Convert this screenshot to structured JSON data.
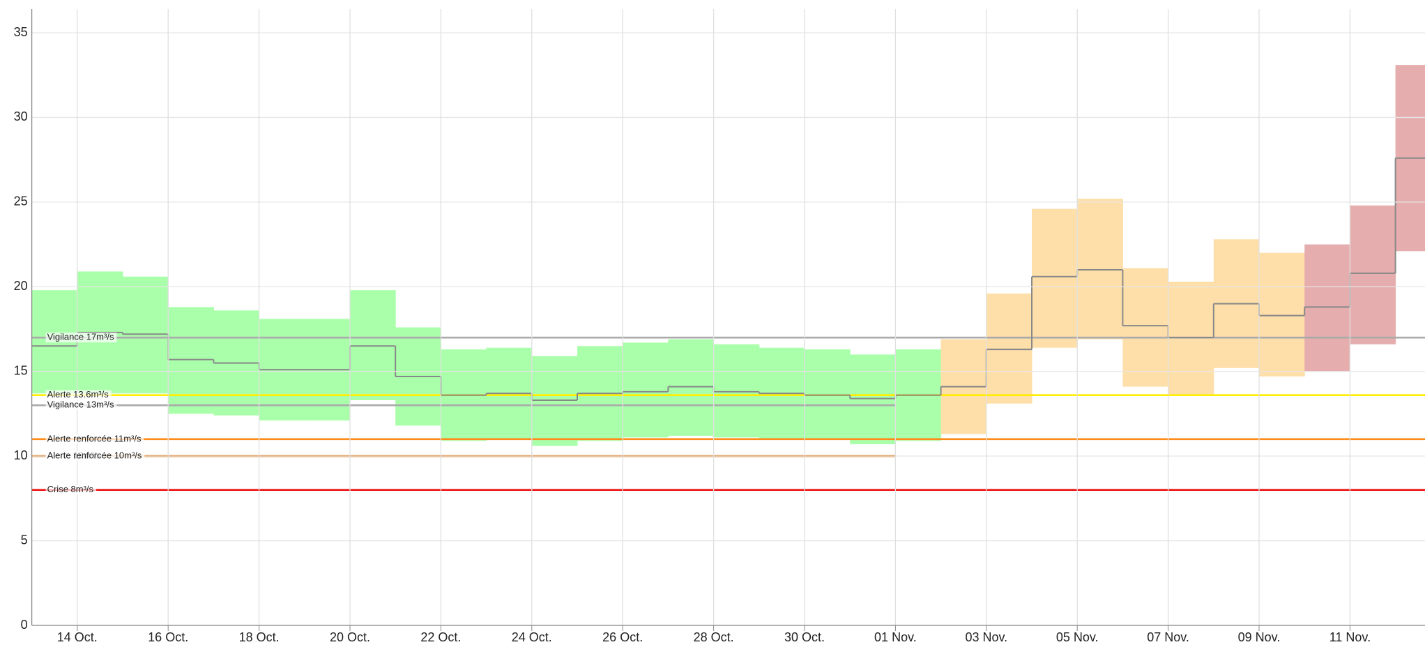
{
  "chart_data": {
    "type": "step-band",
    "categories": [
      null,
      "14 Oct.",
      null,
      "16 Oct.",
      null,
      "18 Oct.",
      null,
      "20 Oct.",
      null,
      "22 Oct.",
      null,
      "24 Oct.",
      null,
      "26 Oct.",
      null,
      "28 Oct.",
      null,
      "30 Oct.",
      null,
      "01 Nov.",
      null,
      "03 Nov.",
      null,
      "05 Nov.",
      null,
      "07 Nov.",
      null,
      "09 Nov.",
      null,
      "11 Nov.",
      null
    ],
    "values": [
      16.5,
      17.3,
      17.2,
      15.7,
      15.5,
      15.1,
      15.1,
      16.5,
      14.7,
      13.6,
      13.7,
      13.3,
      13.7,
      13.8,
      14.1,
      13.8,
      13.7,
      13.6,
      13.4,
      13.6,
      14.1,
      16.3,
      20.6,
      21.0,
      17.7,
      17.0,
      19.0,
      18.3,
      18.8,
      20.8,
      27.6
    ],
    "upper": [
      19.8,
      20.9,
      20.6,
      18.8,
      18.6,
      18.1,
      18.1,
      19.8,
      17.6,
      16.3,
      16.4,
      15.9,
      16.5,
      16.7,
      16.9,
      16.6,
      16.4,
      16.3,
      16.0,
      16.3,
      16.9,
      19.6,
      24.6,
      25.2,
      21.1,
      20.3,
      22.8,
      22.0,
      22.5,
      24.8,
      33.1
    ],
    "lower": [
      13.7,
      13.7,
      13.7,
      12.5,
      12.4,
      12.1,
      12.1,
      13.3,
      11.8,
      10.9,
      11.0,
      10.6,
      10.9,
      11.1,
      11.2,
      11.1,
      11.0,
      11.0,
      10.7,
      10.9,
      11.3,
      13.1,
      16.4,
      16.9,
      14.1,
      13.6,
      15.2,
      14.7,
      15.0,
      16.6,
      22.1
    ],
    "band_colors": [
      "#aaffaa",
      "#aaffaa",
      "#aaffaa",
      "#aaffaa",
      "#aaffaa",
      "#aaffaa",
      "#aaffaa",
      "#aaffaa",
      "#aaffaa",
      "#aaffaa",
      "#aaffaa",
      "#aaffaa",
      "#aaffaa",
      "#aaffaa",
      "#aaffaa",
      "#aaffaa",
      "#aaffaa",
      "#aaffaa",
      "#aaffaa",
      "#aaffaa",
      "#fedfaa",
      "#fedfaa",
      "#fedfaa",
      "#fedfaa",
      "#fedfaa",
      "#fedfaa",
      "#fedfaa",
      "#fedfaa",
      "#e5adad",
      "#e5adad",
      "#e5adad"
    ],
    "line_color": "#888888",
    "thresholds": [
      {
        "label": "Vigilance 17m³/s",
        "value": 17,
        "color": "#aaaaaa"
      },
      {
        "label": "Alerte 13.6m³/s",
        "value": 13.6,
        "color": "#ffee00"
      },
      {
        "label": "Vigilance 13m³/s",
        "value": 13,
        "color": "#aaaaaa",
        "until": "01 Nov."
      },
      {
        "label": "Alerte renforcée 11m³/s",
        "value": 11,
        "color": "#ff8c1a"
      },
      {
        "label": "Alerte 10m³/s",
        "value": 10,
        "color": "#ee9922",
        "until": "01 Nov."
      },
      {
        "label": "Alerte renforcée 10m³/s",
        "value": 10,
        "color": "#dd7711",
        "until": "01 Nov."
      },
      {
        "label": "Crise 8m³/s",
        "value": 8,
        "color": "#ee1111"
      }
    ],
    "ylim": [
      0,
      35
    ],
    "yticks": [
      0,
      5,
      10,
      15,
      20,
      25,
      30,
      35
    ],
    "grid": true
  }
}
